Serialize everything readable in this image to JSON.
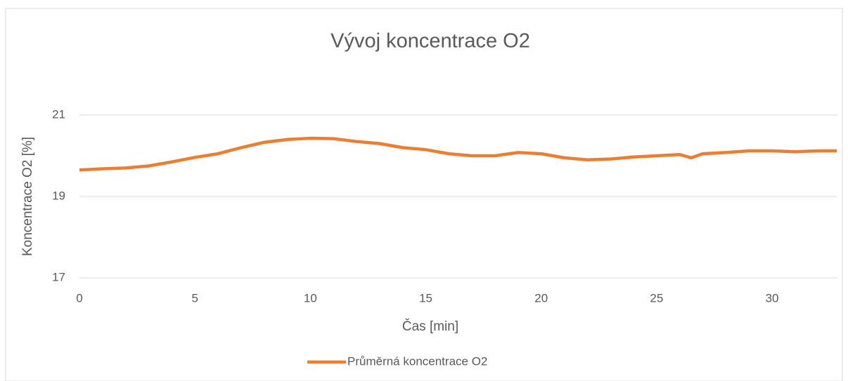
{
  "chart_data": {
    "type": "line",
    "title": "Vývoj koncentrace O2",
    "x_label": "Čas [min]",
    "y_label": "Koncentrace O2 [%]",
    "x": [
      0,
      1,
      2,
      3,
      4,
      5,
      6,
      7,
      8,
      9,
      10,
      11,
      12,
      13,
      14,
      15,
      16,
      17,
      18,
      19,
      20,
      21,
      22,
      23,
      24,
      25,
      26,
      26.5,
      27,
      28,
      29,
      30,
      31,
      32,
      32.8
    ],
    "series": [
      {
        "name": "Průměrná koncentrace O2",
        "color": "#ed7d31",
        "values": [
          19.65,
          19.68,
          19.7,
          19.75,
          19.85,
          19.96,
          20.05,
          20.2,
          20.33,
          20.4,
          20.43,
          20.42,
          20.35,
          20.3,
          20.2,
          20.15,
          20.05,
          20.0,
          20.0,
          20.08,
          20.05,
          19.95,
          19.9,
          19.92,
          19.97,
          20.0,
          20.03,
          19.95,
          20.05,
          20.08,
          20.12,
          20.12,
          20.1,
          20.12,
          20.12
        ]
      }
    ],
    "xlim": [
      0,
      32.8
    ],
    "xticks": [
      0,
      5,
      10,
      15,
      20,
      25,
      30
    ],
    "ylim": [
      17,
      21
    ],
    "yticks": [
      17,
      19,
      21
    ],
    "grid": true,
    "legend": "bottom"
  }
}
